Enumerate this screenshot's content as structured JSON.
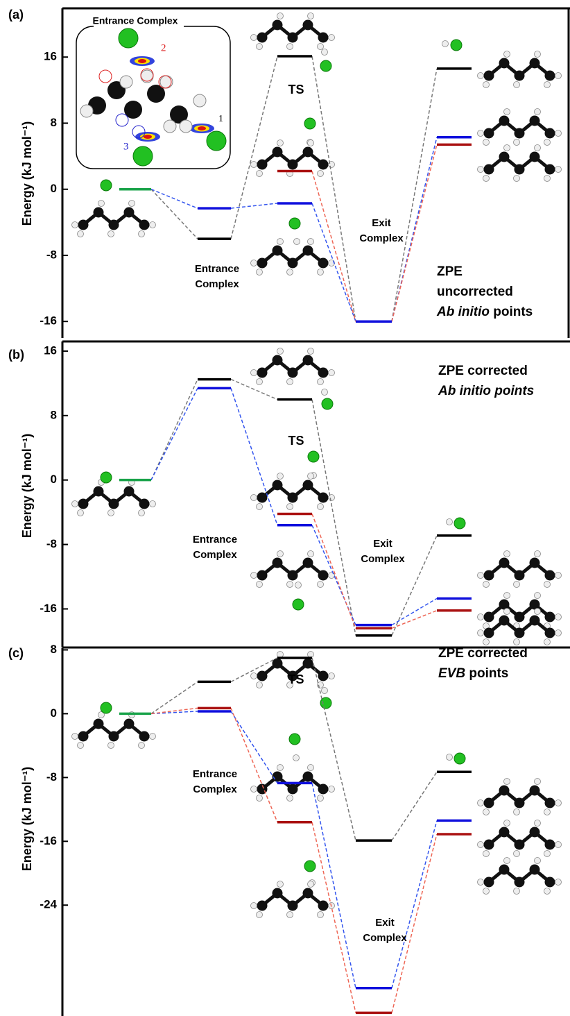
{
  "chart_data": [
    {
      "type": "energy-level",
      "panel_label": "(a)",
      "ylabel": "Energy (kJ mol⁻¹)",
      "ylim": [
        -18,
        21.9
      ],
      "yticks": [
        -16,
        -8,
        0,
        8,
        16
      ],
      "reactant": {
        "value": 0,
        "color": "#1aa34a"
      },
      "series": [
        {
          "color": "#000000",
          "dash_color": "#777777",
          "values": [
            -6.0,
            16.1,
            -16,
            14.6
          ]
        },
        {
          "color": "#1010dd",
          "dash_color": "#3355ee",
          "values": [
            -2.3,
            -1.7,
            -16,
            6.3
          ]
        },
        {
          "color": "#aa1111",
          "dash_color": "#ee6655",
          "values": [
            null,
            2.2,
            -16,
            5.4
          ]
        }
      ],
      "ts_label": "TS",
      "entrance_label": [
        "Entrance",
        "Complex"
      ],
      "exit_label": [
        "Exit",
        "Complex"
      ],
      "corner_text": [
        [
          {
            "text": "ZPE"
          }
        ],
        [
          {
            "text": "uncorrected"
          }
        ],
        [
          {
            "text": "Ab initio",
            "italic": true
          },
          {
            "text": " points"
          }
        ]
      ],
      "inset": {
        "title": "Entrance Complex",
        "site_labels": [
          "1",
          "2",
          "3"
        ]
      }
    },
    {
      "type": "energy-level",
      "panel_label": "(b)",
      "ylabel": "Energy (kJ mol⁻¹)",
      "ylim": [
        -20.7,
        17.2
      ],
      "yticks": [
        -16,
        -8,
        0,
        8,
        16
      ],
      "reactant": {
        "value": 0,
        "color": "#1aa34a"
      },
      "series": [
        {
          "color": "#000000",
          "dash_color": "#777777",
          "values": [
            12.5,
            10.0,
            -19.3,
            -6.9
          ]
        },
        {
          "color": "#1010dd",
          "dash_color": "#3355ee",
          "values": [
            11.4,
            -5.6,
            -18.0,
            -14.7
          ]
        },
        {
          "color": "#aa1111",
          "dash_color": "#ee6655",
          "values": [
            null,
            -4.2,
            -18.4,
            -16.2
          ]
        }
      ],
      "ts_label": "TS",
      "entrance_label": [
        "Entrance",
        "Complex"
      ],
      "exit_label": [
        "Exit",
        "Complex"
      ],
      "corner_text": [
        [
          {
            "text": "ZPE corrected"
          }
        ],
        [
          {
            "text": "Ab initio points",
            "italic": true
          }
        ]
      ]
    },
    {
      "type": "energy-level",
      "panel_label": "(c)",
      "ylabel": "Energy (kJ mol⁻¹)",
      "ylim": [
        -37.9,
        8.3
      ],
      "yticks": [
        -24,
        -16,
        -8,
        0,
        8
      ],
      "reactant": {
        "value": 0,
        "color": "#1aa34a"
      },
      "series": [
        {
          "color": "#000000",
          "dash_color": "#777777",
          "values": [
            4.0,
            7.0,
            -15.9,
            -7.3
          ]
        },
        {
          "color": "#1010dd",
          "dash_color": "#3355ee",
          "values": [
            0.3,
            -8.7,
            -34.4,
            -13.4
          ]
        },
        {
          "color": "#aa1111",
          "dash_color": "#ee6655",
          "values": [
            0.7,
            -13.6,
            -37.5,
            -15.1
          ]
        }
      ],
      "ts_label": "TS",
      "entrance_label": [
        "Entrance",
        "Complex"
      ],
      "exit_label": [
        "Exit",
        "Complex"
      ],
      "corner_text": [
        [
          {
            "text": "ZPE corrected"
          }
        ],
        [
          {
            "text": "EVB",
            "italic": true
          },
          {
            "text": " points"
          }
        ]
      ]
    }
  ]
}
